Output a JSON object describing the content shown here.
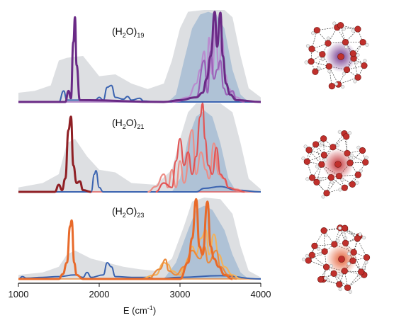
{
  "chart_data": [
    {
      "type": "line",
      "panel_label": {
        "base": "(H",
        "sub1": "2",
        "mid": "O)",
        "sub2": "19"
      },
      "xlim": [
        1000,
        4000
      ],
      "colors": {
        "main": "#6a2a86",
        "light": "#b98ccf",
        "mid": "#9a62b8",
        "blue": "#3a63b0"
      },
      "envelope_gray": [
        [
          1000,
          0.1
        ],
        [
          1200,
          0.12
        ],
        [
          1400,
          0.18
        ],
        [
          1500,
          0.45
        ],
        [
          1600,
          0.48
        ],
        [
          1800,
          0.5
        ],
        [
          2000,
          0.28
        ],
        [
          2200,
          0.3
        ],
        [
          2400,
          0.2
        ],
        [
          2600,
          0.14
        ],
        [
          2800,
          0.2
        ],
        [
          2900,
          0.45
        ],
        [
          3000,
          0.8
        ],
        [
          3100,
          0.98
        ],
        [
          3300,
          1.0
        ],
        [
          3550,
          1.0
        ],
        [
          3650,
          0.92
        ],
        [
          3750,
          0.5
        ],
        [
          3850,
          0.15
        ],
        [
          4000,
          0.05
        ]
      ],
      "envelope_blue": [
        [
          2850,
          0
        ],
        [
          2950,
          0.08
        ],
        [
          3050,
          0.45
        ],
        [
          3150,
          0.8
        ],
        [
          3250,
          0.95
        ],
        [
          3350,
          0.98
        ],
        [
          3450,
          0.95
        ],
        [
          3550,
          0.8
        ],
        [
          3650,
          0.35
        ],
        [
          3750,
          0.08
        ],
        [
          3850,
          0
        ]
      ],
      "series_main": [
        [
          1000,
          0
        ],
        [
          1580,
          0
        ],
        [
          1620,
          0.12
        ],
        [
          1650,
          0.04
        ],
        [
          1680,
          0.65
        ],
        [
          1700,
          0.92
        ],
        [
          1720,
          0.4
        ],
        [
          1760,
          0.02
        ],
        [
          2800,
          0
        ],
        [
          3000,
          0.02
        ],
        [
          3200,
          0.05
        ],
        [
          3280,
          0.1
        ],
        [
          3330,
          0.25
        ],
        [
          3380,
          0.5
        ],
        [
          3430,
          0.98
        ],
        [
          3460,
          0.6
        ],
        [
          3500,
          0.97
        ],
        [
          3530,
          0.5
        ],
        [
          3570,
          0.2
        ],
        [
          3620,
          0.08
        ],
        [
          3700,
          0.02
        ],
        [
          4000,
          0
        ]
      ],
      "series_light": [
        [
          2900,
          0
        ],
        [
          3100,
          0.05
        ],
        [
          3200,
          0.2
        ],
        [
          3250,
          0.35
        ],
        [
          3300,
          0.55
        ],
        [
          3330,
          0.2
        ],
        [
          3360,
          0.7
        ],
        [
          3400,
          0.3
        ],
        [
          3440,
          0.85
        ],
        [
          3480,
          0.35
        ],
        [
          3520,
          0.7
        ],
        [
          3560,
          0.3
        ],
        [
          3600,
          0.15
        ],
        [
          3650,
          0.1
        ],
        [
          3700,
          0.05
        ],
        [
          3800,
          0
        ]
      ],
      "series_mid": [
        [
          2900,
          0
        ],
        [
          3200,
          0.05
        ],
        [
          3300,
          0.45
        ],
        [
          3340,
          0.1
        ],
        [
          3380,
          0.55
        ],
        [
          3420,
          0.25
        ],
        [
          3460,
          0.35
        ],
        [
          3500,
          0.45
        ],
        [
          3540,
          0.15
        ],
        [
          3580,
          0.08
        ],
        [
          3650,
          0.12
        ],
        [
          3700,
          0.02
        ],
        [
          3800,
          0
        ]
      ],
      "series_blue": [
        [
          1000,
          0
        ],
        [
          1500,
          0
        ],
        [
          1560,
          0.12
        ],
        [
          1600,
          0.02
        ],
        [
          1950,
          0.02
        ],
        [
          2000,
          0.05
        ],
        [
          2050,
          0.02
        ],
        [
          2100,
          0.16
        ],
        [
          2150,
          0.18
        ],
        [
          2200,
          0.05
        ],
        [
          2300,
          0.03
        ],
        [
          2350,
          0.06
        ],
        [
          2400,
          0.02
        ],
        [
          2500,
          0.04
        ],
        [
          2550,
          0.01
        ],
        [
          2700,
          0
        ],
        [
          4000,
          0
        ]
      ]
    },
    {
      "type": "line",
      "panel_label": {
        "base": "(H",
        "sub1": "2",
        "mid": "O)",
        "sub2": "21"
      },
      "xlim": [
        1000,
        4000
      ],
      "colors": {
        "main": "#8f1f24",
        "light": "#ec8d86",
        "mid": "#e25555",
        "blue": "#3a63b0"
      },
      "envelope_gray": [
        [
          1000,
          0.05
        ],
        [
          1300,
          0.1
        ],
        [
          1500,
          0.2
        ],
        [
          1600,
          0.55
        ],
        [
          1700,
          0.6
        ],
        [
          1850,
          0.4
        ],
        [
          2000,
          0.25
        ],
        [
          2200,
          0.22
        ],
        [
          2400,
          0.1
        ],
        [
          2700,
          0.08
        ],
        [
          2900,
          0.25
        ],
        [
          3000,
          0.6
        ],
        [
          3100,
          0.9
        ],
        [
          3200,
          1.0
        ],
        [
          3500,
          1.0
        ],
        [
          3650,
          0.9
        ],
        [
          3750,
          0.55
        ],
        [
          3850,
          0.15
        ],
        [
          4000,
          0.03
        ]
      ],
      "envelope_blue": [
        [
          2900,
          0
        ],
        [
          3000,
          0.15
        ],
        [
          3100,
          0.6
        ],
        [
          3200,
          0.85
        ],
        [
          3300,
          0.92
        ],
        [
          3400,
          0.85
        ],
        [
          3500,
          0.55
        ],
        [
          3600,
          0.15
        ],
        [
          3700,
          0
        ]
      ],
      "series_main": [
        [
          1000,
          0
        ],
        [
          1450,
          0
        ],
        [
          1500,
          0.08
        ],
        [
          1540,
          0.02
        ],
        [
          1580,
          0.15
        ],
        [
          1620,
          0.7
        ],
        [
          1650,
          0.85
        ],
        [
          1680,
          0.3
        ],
        [
          1720,
          0.1
        ],
        [
          1760,
          0.12
        ],
        [
          1800,
          0.02
        ],
        [
          1900,
          0
        ]
      ],
      "series_light": [
        [
          2600,
          0
        ],
        [
          2700,
          0.06
        ],
        [
          2800,
          0.2
        ],
        [
          2850,
          0.05
        ],
        [
          2900,
          0.25
        ],
        [
          2950,
          0.05
        ],
        [
          3000,
          0.35
        ],
        [
          3050,
          0.1
        ],
        [
          3150,
          0.7
        ],
        [
          3200,
          0.2
        ],
        [
          3260,
          0.45
        ],
        [
          3320,
          0.25
        ],
        [
          3360,
          0.15
        ],
        [
          3420,
          0.55
        ],
        [
          3480,
          0.2
        ],
        [
          3540,
          0.15
        ],
        [
          3600,
          0.05
        ],
        [
          3700,
          0.03
        ],
        [
          3800,
          0
        ]
      ],
      "series_mid": [
        [
          2700,
          0
        ],
        [
          2800,
          0.1
        ],
        [
          2900,
          0.05
        ],
        [
          2950,
          0.35
        ],
        [
          3000,
          0.6
        ],
        [
          3050,
          0.3
        ],
        [
          3100,
          0.45
        ],
        [
          3150,
          0.2
        ],
        [
          3200,
          0.4
        ],
        [
          3250,
          0.85
        ],
        [
          3280,
          1.0
        ],
        [
          3310,
          0.6
        ],
        [
          3350,
          0.3
        ],
        [
          3400,
          0.2
        ],
        [
          3450,
          0.5
        ],
        [
          3500,
          0.2
        ],
        [
          3550,
          0.15
        ],
        [
          3600,
          0.05
        ],
        [
          3700,
          0.02
        ],
        [
          3800,
          0
        ]
      ],
      "series_blue": [
        [
          1000,
          0
        ],
        [
          1900,
          0
        ],
        [
          1940,
          0.2
        ],
        [
          1960,
          0.24
        ],
        [
          2000,
          0.05
        ],
        [
          2050,
          0
        ],
        [
          3200,
          0
        ],
        [
          3300,
          0.04
        ],
        [
          3500,
          0.06
        ],
        [
          3700,
          0.02
        ],
        [
          4000,
          0
        ]
      ]
    },
    {
      "type": "line",
      "panel_label": {
        "base": "(H",
        "sub1": "2",
        "mid": "O)",
        "sub2": "23"
      },
      "xlim": [
        1000,
        4000
      ],
      "colors": {
        "main": "#e86a2a",
        "light": "#f3b25b",
        "mid": "#eb8a3c",
        "blue": "#3a63b0"
      },
      "envelope_gray": [
        [
          1000,
          0.05
        ],
        [
          1300,
          0.08
        ],
        [
          1500,
          0.15
        ],
        [
          1600,
          0.3
        ],
        [
          1700,
          0.35
        ],
        [
          1900,
          0.25
        ],
        [
          2100,
          0.2
        ],
        [
          2300,
          0.15
        ],
        [
          2500,
          0.12
        ],
        [
          2700,
          0.1
        ],
        [
          2900,
          0.25
        ],
        [
          3050,
          0.65
        ],
        [
          3150,
          0.95
        ],
        [
          3300,
          1.0
        ],
        [
          3500,
          0.98
        ],
        [
          3650,
          0.8
        ],
        [
          3750,
          0.4
        ],
        [
          3850,
          0.1
        ],
        [
          4000,
          0.02
        ]
      ],
      "envelope_blue": [
        [
          2800,
          0
        ],
        [
          2950,
          0.2
        ],
        [
          3100,
          0.6
        ],
        [
          3200,
          0.85
        ],
        [
          3300,
          0.9
        ],
        [
          3400,
          0.85
        ],
        [
          3550,
          0.6
        ],
        [
          3650,
          0.3
        ],
        [
          3750,
          0.08
        ],
        [
          3850,
          0
        ]
      ],
      "series_main": [
        [
          1000,
          0
        ],
        [
          1500,
          0
        ],
        [
          1550,
          0.06
        ],
        [
          1600,
          0.2
        ],
        [
          1640,
          0.65
        ],
        [
          1660,
          0.72
        ],
        [
          1690,
          0.2
        ],
        [
          1720,
          0.05
        ],
        [
          1800,
          0
        ],
        [
          3000,
          0
        ],
        [
          3100,
          0.2
        ],
        [
          3150,
          0.5
        ],
        [
          3200,
          0.98
        ],
        [
          3240,
          0.4
        ],
        [
          3280,
          0.3
        ],
        [
          3340,
          0.95
        ],
        [
          3380,
          0.4
        ],
        [
          3420,
          0.25
        ],
        [
          3480,
          0.15
        ],
        [
          3550,
          0.05
        ],
        [
          3650,
          0
        ]
      ],
      "series_light": [
        [
          2500,
          0
        ],
        [
          2700,
          0.05
        ],
        [
          2800,
          0.2
        ],
        [
          2850,
          0.18
        ],
        [
          2900,
          0.1
        ],
        [
          3000,
          0.05
        ],
        [
          3050,
          0.15
        ],
        [
          3100,
          0.25
        ],
        [
          3150,
          0.4
        ],
        [
          3200,
          0.3
        ],
        [
          3260,
          0.5
        ],
        [
          3320,
          0.6
        ],
        [
          3360,
          0.3
        ],
        [
          3420,
          0.55
        ],
        [
          3480,
          0.3
        ],
        [
          3550,
          0.15
        ],
        [
          3650,
          0.05
        ],
        [
          3750,
          0
        ]
      ],
      "series_mid": [
        [
          2600,
          0
        ],
        [
          2750,
          0.12
        ],
        [
          2820,
          0.24
        ],
        [
          2860,
          0.1
        ],
        [
          2950,
          0.05
        ],
        [
          3050,
          0.15
        ],
        [
          3150,
          0.35
        ],
        [
          3250,
          0.25
        ],
        [
          3300,
          0.4
        ],
        [
          3350,
          0.2
        ],
        [
          3450,
          0.35
        ],
        [
          3500,
          0.15
        ],
        [
          3600,
          0.05
        ],
        [
          3700,
          0
        ]
      ],
      "series_blue": [
        [
          1000,
          0
        ],
        [
          1050,
          0.03
        ],
        [
          1100,
          0.01
        ],
        [
          1300,
          0.02
        ],
        [
          1500,
          0.03
        ],
        [
          1700,
          0.05
        ],
        [
          1800,
          0.02
        ],
        [
          1850,
          0.08
        ],
        [
          1900,
          0.02
        ],
        [
          2050,
          0.05
        ],
        [
          2100,
          0.2
        ],
        [
          2150,
          0.15
        ],
        [
          2200,
          0.03
        ],
        [
          2400,
          0.02
        ],
        [
          2600,
          0.02
        ],
        [
          2700,
          0
        ],
        [
          3000,
          0.02
        ],
        [
          3500,
          0.04
        ],
        [
          4000,
          0
        ]
      ]
    }
  ],
  "axis": {
    "x_ticks": [
      1000,
      2000,
      3000,
      4000
    ],
    "x_tick_labels": [
      "1000",
      "2000",
      "3000",
      "4000"
    ],
    "xlabel_main": "E (cm",
    "xlabel_sup": "-1",
    "xlabel_close": ")"
  },
  "molecules": [
    {
      "icon": "water-cluster-19-icon",
      "highlight": "#6a2a86"
    },
    {
      "icon": "water-cluster-21-icon",
      "highlight": "#c0282d"
    },
    {
      "icon": "water-cluster-23-icon",
      "highlight": "#e2562a"
    }
  ]
}
